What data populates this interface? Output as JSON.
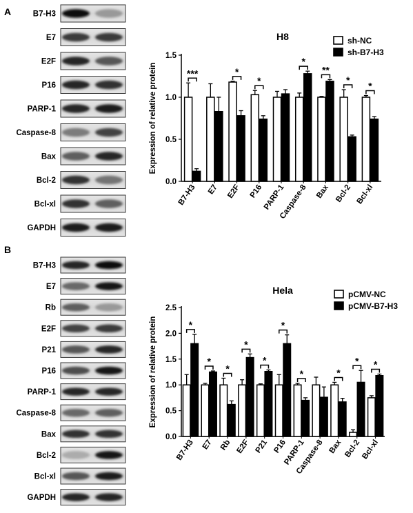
{
  "figure": {
    "panels": [
      {
        "letter": "A",
        "blot_labels": [
          "B7-H3",
          "E7",
          "E2F",
          "P16",
          "PARP-1",
          "Caspase-8",
          "Bax",
          "Bcl-2",
          "Bcl-xl",
          "GAPDH"
        ]
      },
      {
        "letter": "B",
        "blot_labels": [
          "B7-H3",
          "E7",
          "Rb",
          "E2F",
          "P21",
          "P16",
          "PARP-1",
          "Caspase-8",
          "Bax",
          "Bcl-2",
          "Bcl-xl",
          "GAPDH"
        ]
      }
    ]
  },
  "chart_data": [
    {
      "type": "bar",
      "title": "H8",
      "ylabel": "Expression of relative protein",
      "xlabel": "",
      "ylim": [
        0,
        1.5
      ],
      "yticks": [
        "0.0",
        "0.5",
        "1.0",
        "1.5"
      ],
      "categories": [
        "B7-H3",
        "E7",
        "E2F",
        "P16",
        "PARP-1",
        "Caspase-8",
        "Bax",
        "Bcl-2",
        "Bcl-xl"
      ],
      "series": [
        {
          "name": "sh-NC",
          "color": "#ffffff",
          "values": [
            1.0,
            1.0,
            1.18,
            1.03,
            1.0,
            1.0,
            1.0,
            1.0,
            1.0
          ],
          "errors": [
            0.17,
            0.16,
            0.01,
            0.05,
            0.07,
            0.05,
            0.01,
            0.09,
            0.02
          ]
        },
        {
          "name": "sh-B7-H3",
          "color": "#000000",
          "values": [
            0.12,
            0.83,
            0.78,
            0.74,
            1.04,
            1.28,
            1.19,
            0.53,
            0.74
          ],
          "errors": [
            0.03,
            0.17,
            0.06,
            0.04,
            0.05,
            0.03,
            0.02,
            0.02,
            0.03
          ]
        }
      ],
      "significance": [
        "***",
        "",
        "*",
        "*",
        "",
        "*",
        "**",
        "*",
        "*"
      ],
      "legend": "top-right",
      "grid": false
    },
    {
      "type": "bar",
      "title": "Hela",
      "ylabel": "Expression of relative protein",
      "xlabel": "",
      "ylim": [
        0,
        2.5
      ],
      "yticks": [
        "0.0",
        "0.5",
        "1.0",
        "1.5",
        "2.0",
        "2.5"
      ],
      "categories": [
        "B7-H3",
        "E7",
        "Rb",
        "E2F",
        "P21",
        "P16",
        "PARP-1",
        "Caspase-8",
        "Bax",
        "Bcl-2",
        "Bcl-xl"
      ],
      "series": [
        {
          "name": "pCMV-NC",
          "color": "#ffffff",
          "values": [
            1.0,
            1.0,
            1.0,
            1.0,
            1.0,
            1.0,
            1.0,
            1.0,
            1.0,
            0.08,
            0.75
          ],
          "errors": [
            0.2,
            0.03,
            0.13,
            0.1,
            0.02,
            0.2,
            0.03,
            0.15,
            0.05,
            0.05,
            0.04
          ]
        },
        {
          "name": "pCMV-B7-H3",
          "color": "#000000",
          "values": [
            1.8,
            1.25,
            0.62,
            1.53,
            1.26,
            1.8,
            0.7,
            0.76,
            0.67,
            1.05,
            1.18
          ],
          "errors": [
            0.18,
            0.02,
            0.07,
            0.07,
            0.03,
            0.17,
            0.05,
            0.2,
            0.07,
            0.23,
            0.03
          ]
        }
      ],
      "significance": [
        "*",
        "*",
        "*",
        "*",
        "*",
        "*",
        "*",
        "",
        "*",
        "*",
        "*"
      ],
      "legend": "top-right",
      "grid": false
    }
  ]
}
